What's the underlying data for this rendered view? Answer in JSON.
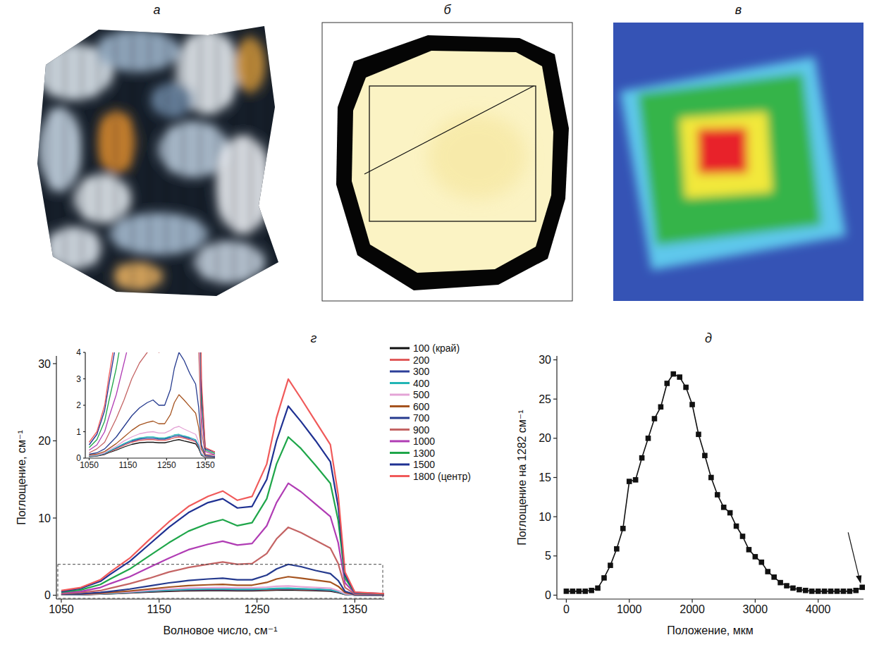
{
  "images": [
    {
      "title": "а"
    },
    {
      "title": "б"
    },
    {
      "title": "в"
    }
  ],
  "chart_data": [
    {
      "type": "line",
      "title": "г",
      "xlabel": "Волновое число, см⁻¹",
      "ylabel": "Поглощение, см⁻¹",
      "x": [
        1050,
        1070,
        1090,
        1100,
        1120,
        1140,
        1160,
        1180,
        1200,
        1215,
        1230,
        1245,
        1260,
        1270,
        1282,
        1295,
        1310,
        1325,
        1333,
        1340,
        1350,
        1380
      ],
      "series": [
        {
          "name": "100 (край)",
          "color": "#111111",
          "values": [
            0.06,
            0.08,
            0.14,
            0.2,
            0.3,
            0.42,
            0.52,
            0.58,
            0.6,
            0.6,
            0.58,
            0.58,
            0.63,
            0.67,
            0.7,
            0.65,
            0.6,
            0.54,
            0.36,
            0.11,
            0.03,
            0.02
          ]
        },
        {
          "name": "200",
          "color": "#e05a5a",
          "values": [
            0.07,
            0.09,
            0.16,
            0.22,
            0.35,
            0.48,
            0.6,
            0.67,
            0.7,
            0.7,
            0.67,
            0.67,
            0.72,
            0.77,
            0.8,
            0.75,
            0.69,
            0.62,
            0.42,
            0.13,
            0.03,
            0.02
          ]
        },
        {
          "name": "300",
          "color": "#2d3f99",
          "values": [
            0.08,
            0.1,
            0.17,
            0.24,
            0.38,
            0.52,
            0.64,
            0.72,
            0.75,
            0.75,
            0.72,
            0.72,
            0.78,
            0.83,
            0.85,
            0.8,
            0.74,
            0.66,
            0.45,
            0.14,
            0.04,
            0.03
          ]
        },
        {
          "name": "400",
          "color": "#22b5b5",
          "values": [
            0.08,
            0.1,
            0.18,
            0.25,
            0.4,
            0.55,
            0.68,
            0.76,
            0.8,
            0.8,
            0.76,
            0.76,
            0.82,
            0.88,
            0.9,
            0.84,
            0.78,
            0.7,
            0.48,
            0.15,
            0.04,
            0.03
          ]
        },
        {
          "name": "500",
          "color": "#e4a4d6",
          "values": [
            0.1,
            0.12,
            0.2,
            0.3,
            0.45,
            0.65,
            0.8,
            0.92,
            0.98,
            1.0,
            0.95,
            0.95,
            1.05,
            1.15,
            1.2,
            1.1,
            1.0,
            0.9,
            0.6,
            0.2,
            0.05,
            0.05
          ]
        },
        {
          "name": "600",
          "color": "#a5531f",
          "values": [
            0.12,
            0.15,
            0.25,
            0.35,
            0.55,
            0.8,
            1.05,
            1.25,
            1.35,
            1.4,
            1.3,
            1.3,
            1.65,
            2.1,
            2.4,
            2.2,
            1.95,
            1.7,
            1.15,
            0.35,
            0.08,
            0.05
          ]
        },
        {
          "name": "700",
          "color": "#253a8e",
          "values": [
            0.15,
            0.2,
            0.35,
            0.5,
            0.8,
            1.2,
            1.6,
            1.9,
            2.1,
            2.2,
            2.0,
            2.0,
            2.6,
            3.4,
            4.0,
            3.7,
            3.2,
            2.8,
            1.9,
            0.5,
            0.1,
            0.05
          ]
        },
        {
          "name": "900",
          "color": "#c46464",
          "values": [
            0.2,
            0.35,
            0.6,
            0.9,
            1.5,
            2.2,
            3.0,
            3.6,
            4.0,
            4.3,
            4.0,
            4.1,
            5.4,
            7.3,
            8.8,
            8.1,
            7.1,
            6.1,
            4.1,
            1.0,
            0.15,
            0.1
          ]
        },
        {
          "name": "1000",
          "color": "#b03cb4",
          "values": [
            0.3,
            0.5,
            1.0,
            1.5,
            2.4,
            3.6,
            4.8,
            5.9,
            6.6,
            7.0,
            6.5,
            6.7,
            9.0,
            12.0,
            14.5,
            13.4,
            11.8,
            10.2,
            6.8,
            1.6,
            0.25,
            0.1
          ]
        },
        {
          "name": "1300",
          "color": "#1fa64a",
          "values": [
            0.4,
            0.7,
            1.4,
            2.1,
            3.4,
            5.1,
            6.8,
            8.3,
            9.3,
            9.8,
            9.0,
            9.4,
            12.5,
            17.0,
            20.5,
            19.0,
            16.8,
            14.5,
            9.7,
            2.2,
            0.3,
            0.15
          ]
        },
        {
          "name": "1500",
          "color": "#1f3192",
          "values": [
            0.5,
            0.9,
            1.8,
            2.7,
            4.4,
            6.6,
            8.8,
            10.7,
            12.0,
            12.5,
            11.3,
            11.5,
            15.0,
            20.0,
            24.5,
            22.5,
            20.0,
            17.3,
            11.5,
            2.6,
            0.35,
            0.2
          ]
        },
        {
          "name": "1800 (центр)",
          "color": "#f05a5a",
          "values": [
            0.6,
            1.0,
            2.0,
            3.0,
            4.8,
            7.2,
            9.5,
            11.5,
            12.8,
            13.5,
            12.3,
            12.8,
            17.0,
            23.0,
            28.0,
            25.5,
            22.5,
            19.5,
            13.0,
            3.0,
            0.4,
            0.2
          ]
        }
      ],
      "xlim": [
        1045,
        1380
      ],
      "ylim": [
        -0.5,
        31
      ],
      "xticks": [
        1050,
        1150,
        1250,
        1350
      ],
      "yticks": [
        0,
        10,
        20,
        30
      ],
      "legend": "right",
      "inset": {
        "xlim": [
          1040,
          1375
        ],
        "ylim": [
          0,
          4
        ],
        "xticks": [
          1050,
          1150,
          1250,
          1350
        ],
        "yticks": [
          0,
          1,
          2,
          3,
          4
        ]
      }
    },
    {
      "type": "line",
      "title": "д",
      "xlabel": "Положение, мкм",
      "ylabel": "Поглощение на 1282 см⁻¹",
      "x": [
        0,
        100,
        200,
        300,
        400,
        500,
        600,
        700,
        800,
        900,
        1000,
        1100,
        1200,
        1300,
        1400,
        1500,
        1600,
        1700,
        1800,
        1900,
        2000,
        2100,
        2200,
        2300,
        2400,
        2500,
        2600,
        2700,
        2800,
        2900,
        3000,
        3100,
        3200,
        3300,
        3400,
        3500,
        3600,
        3700,
        3800,
        3900,
        4000,
        4100,
        4200,
        4300,
        4400,
        4500,
        4600,
        4700
      ],
      "values": [
        0.5,
        0.5,
        0.5,
        0.5,
        0.6,
        0.9,
        2.2,
        3.8,
        5.9,
        8.5,
        14.5,
        14.7,
        17.5,
        20.0,
        22.5,
        24.0,
        27.0,
        28.2,
        27.8,
        26.5,
        24.3,
        20.5,
        17.8,
        15.0,
        12.8,
        11.2,
        10.5,
        8.8,
        7.5,
        5.8,
        4.9,
        4.2,
        3.0,
        2.3,
        1.6,
        1.2,
        0.9,
        0.7,
        0.6,
        0.5,
        0.5,
        0.5,
        0.5,
        0.5,
        0.5,
        0.5,
        0.6,
        1.0
      ],
      "color": "#111111",
      "marker": "square",
      "line_style": "solid",
      "xlim": [
        -150,
        4720
      ],
      "ylim": [
        -0.5,
        30.5
      ],
      "xticks": [
        0,
        1000,
        2000,
        3000,
        4000
      ],
      "yticks": [
        0,
        5,
        10,
        15,
        20,
        25,
        30
      ]
    }
  ]
}
